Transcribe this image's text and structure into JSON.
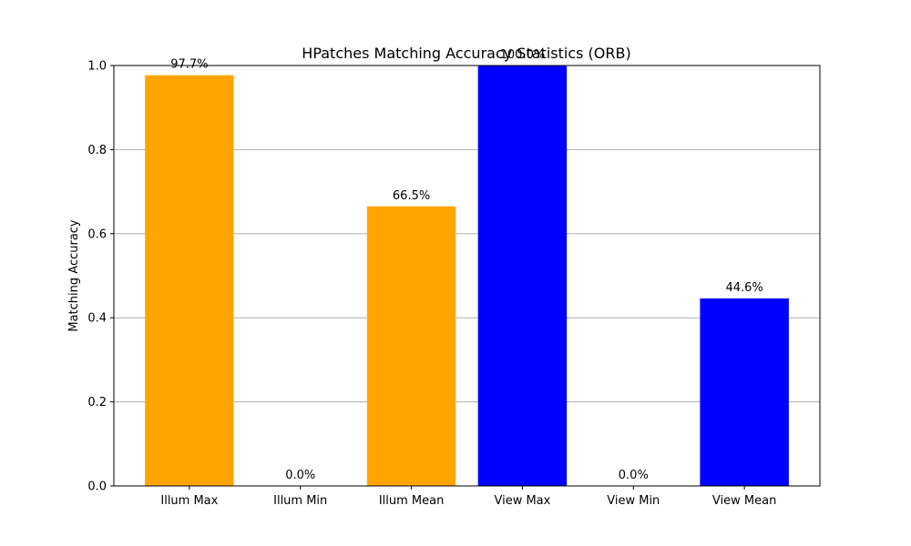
{
  "chart_data": {
    "type": "bar",
    "title": "HPatches Matching Accuracy Statistics (ORB)",
    "xlabel": "",
    "ylabel": "Matching Accuracy",
    "ylim": [
      0,
      1.0
    ],
    "yticks": [
      "0.0",
      "0.2",
      "0.4",
      "0.6",
      "0.8",
      "1.0"
    ],
    "categories": [
      "Illum Max",
      "Illum Min",
      "Illum Mean",
      "View Max",
      "View Min",
      "View Mean"
    ],
    "values": [
      0.977,
      0.0,
      0.665,
      1.0,
      0.0,
      0.446
    ],
    "bar_labels": [
      "97.7%",
      "0.0%",
      "66.5%",
      "100.0%",
      "0.0%",
      "44.6%"
    ],
    "colors": [
      "#FFA500",
      "#FFA500",
      "#FFA500",
      "#0000FF",
      "#0000FF",
      "#0000FF"
    ],
    "grid": "y"
  }
}
